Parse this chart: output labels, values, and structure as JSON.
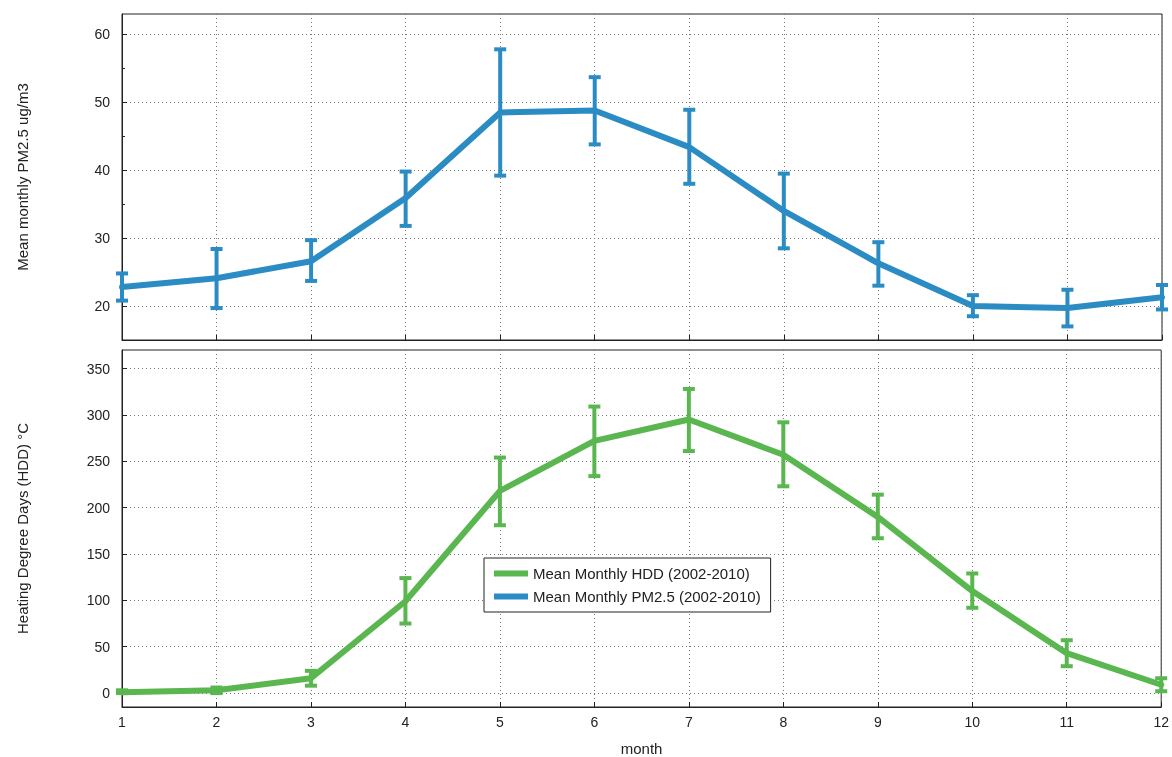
{
  "chart_data": [
    {
      "type": "line",
      "ylabel": "Mean monthly PM2.5 ug/m3",
      "x": [
        1,
        2,
        3,
        4,
        5,
        6,
        7,
        8,
        9,
        10,
        11,
        12
      ],
      "series": [
        {
          "name": "Mean Monthly PM2.5 (2002-2010)",
          "color": "#2b8cc4",
          "values": [
            22.8,
            24.1,
            26.6,
            35.9,
            48.5,
            48.8,
            43.4,
            34,
            26.3,
            20,
            19.7,
            21.3
          ],
          "errors": [
            [
              20.8,
              24.8
            ],
            [
              19.7,
              28.4
            ],
            [
              23.7,
              29.7
            ],
            [
              31.8,
              39.8
            ],
            [
              39.2,
              57.8
            ],
            [
              43.8,
              53.7
            ],
            [
              38,
              48.9
            ],
            [
              28.5,
              39.5
            ],
            [
              23,
              29.4
            ],
            [
              18.5,
              21.6
            ],
            [
              17,
              22.4
            ],
            [
              19.5,
              23.1
            ]
          ]
        }
      ],
      "xlim": [
        1,
        12
      ],
      "xticks": [
        1,
        2,
        3,
        4,
        5,
        6,
        7,
        8,
        9,
        10,
        11,
        12
      ],
      "ylim": [
        15,
        63
      ],
      "yticks": [
        20,
        30,
        40,
        50,
        60
      ],
      "grid": true,
      "legend": "bottom",
      "marker": "none",
      "line_style": "solid",
      "tick_labels": "y"
    },
    {
      "type": "line",
      "xlabel": "month",
      "ylabel": "Heating Degree Days (HDD) °C",
      "x": [
        1,
        2,
        3,
        4,
        5,
        6,
        7,
        8,
        9,
        10,
        11,
        12
      ],
      "series": [
        {
          "name": "Mean Monthly HDD (2002-2010)",
          "color": "#5ab64f",
          "values": [
            1,
            3,
            16,
            99,
            218,
            272,
            295,
            257,
            190,
            110,
            43,
            9
          ],
          "errors": [
            [
              0,
              3
            ],
            [
              0,
              6
            ],
            [
              8,
              24
            ],
            [
              75,
              124
            ],
            [
              181,
              254
            ],
            [
              234,
              309
            ],
            [
              261,
              328
            ],
            [
              223,
              292
            ],
            [
              167,
              214
            ],
            [
              92,
              129
            ],
            [
              29,
              57
            ],
            [
              2,
              16
            ]
          ]
        }
      ],
      "xlim": [
        1,
        12
      ],
      "xticks": [
        1,
        2,
        3,
        4,
        5,
        6,
        7,
        8,
        9,
        10,
        11,
        12
      ],
      "ylim": [
        -15,
        370
      ],
      "yticks": [
        0,
        50,
        100,
        150,
        200,
        250,
        300,
        350
      ],
      "grid": true,
      "legend": "center",
      "marker": "none",
      "line_style": "solid"
    }
  ]
}
